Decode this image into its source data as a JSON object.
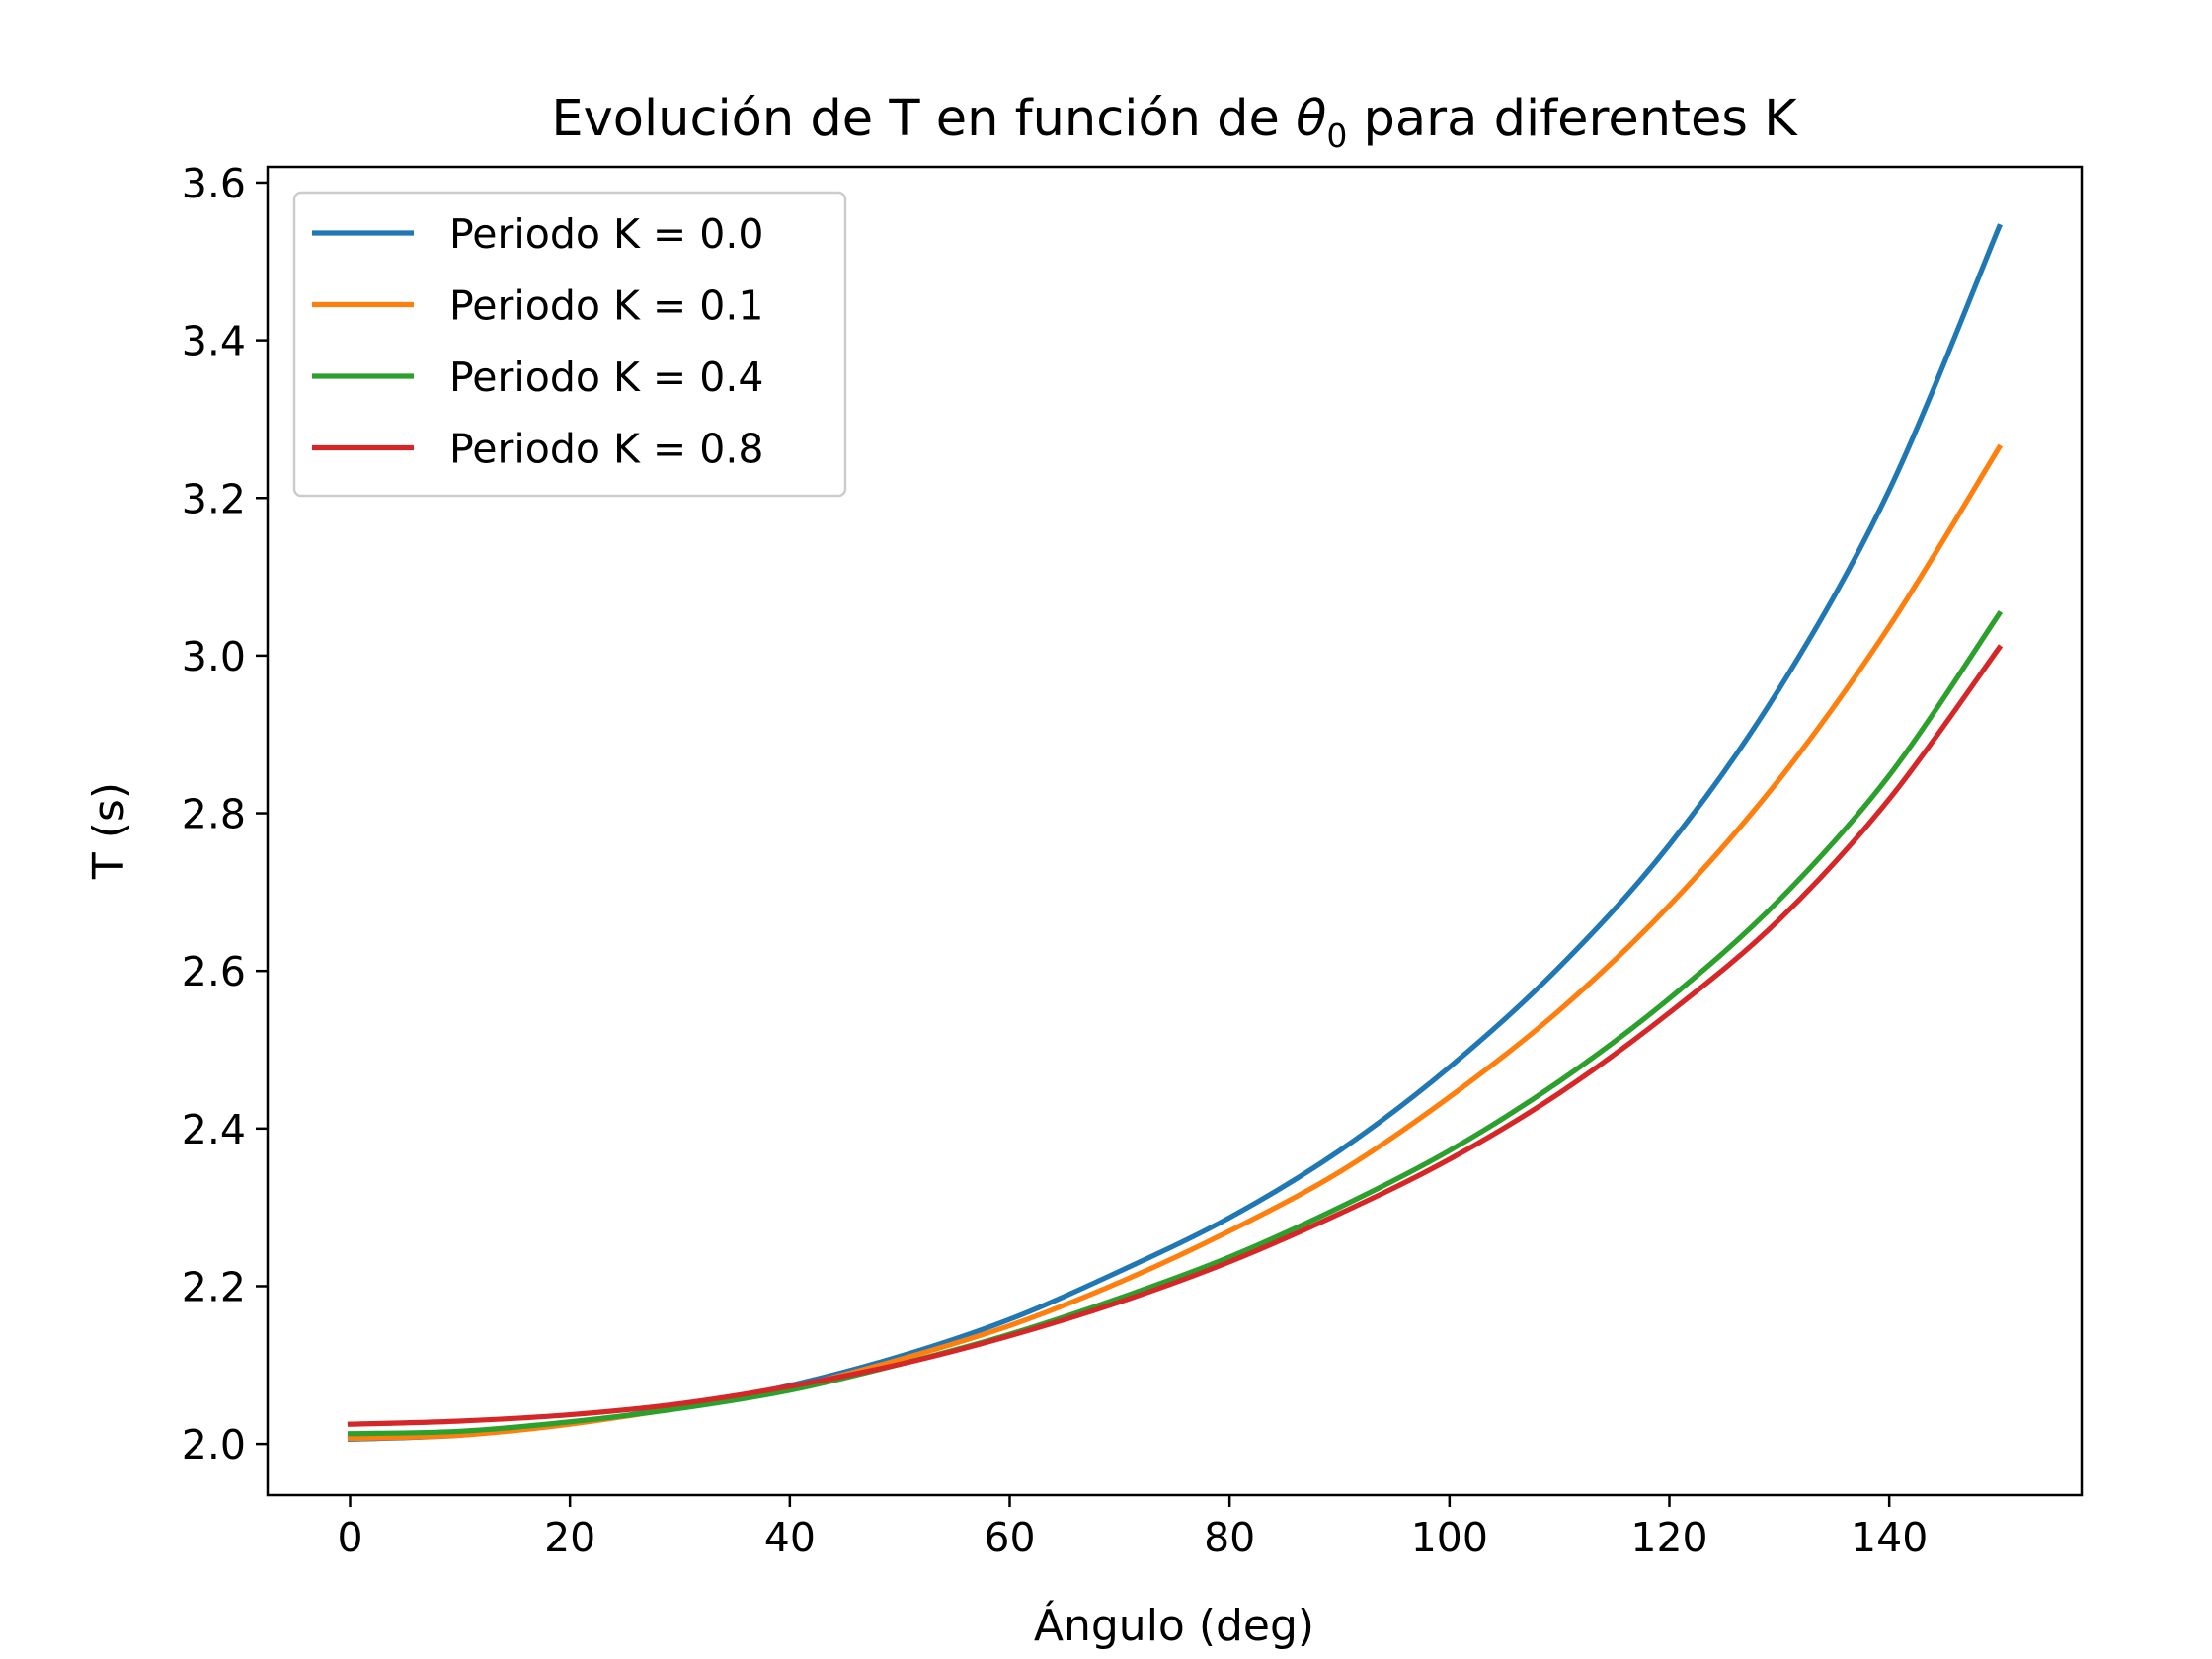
{
  "chart_data": {
    "type": "line",
    "title": {
      "prefix": "Evolución de T en función de ",
      "symbol": "θ",
      "subscript": "0",
      "suffix": " para diferentes K"
    },
    "xlabel": "Ángulo (deg)",
    "ylabel": "T (s)",
    "xlim": [
      -7.5,
      157.5
    ],
    "ylim": [
      1.935,
      3.62
    ],
    "xticks": [
      0,
      20,
      40,
      60,
      80,
      100,
      120,
      140
    ],
    "yticks": [
      2.0,
      2.2,
      2.4,
      2.6,
      2.8,
      3.0,
      3.2,
      3.4,
      3.6
    ],
    "grid": false,
    "legend_position": "upper-left",
    "series": [
      {
        "name": "Periodo K = 0.0",
        "color": "#1f77b4",
        "x": [
          0,
          10,
          20,
          30,
          40,
          50,
          60,
          70,
          80,
          90,
          100,
          110,
          120,
          130,
          140,
          150
        ],
        "y": [
          2.006,
          2.011,
          2.026,
          2.047,
          2.074,
          2.111,
          2.158,
          2.219,
          2.287,
          2.372,
          2.478,
          2.605,
          2.76,
          2.958,
          3.21,
          3.544
        ]
      },
      {
        "name": "Periodo K = 0.1",
        "color": "#ff7f0e",
        "x": [
          0,
          10,
          20,
          30,
          40,
          50,
          60,
          70,
          80,
          90,
          100,
          110,
          120,
          130,
          140,
          150
        ],
        "y": [
          2.007,
          2.011,
          2.025,
          2.046,
          2.071,
          2.107,
          2.15,
          2.205,
          2.27,
          2.345,
          2.44,
          2.55,
          2.683,
          2.843,
          3.037,
          3.264
        ]
      },
      {
        "name": "Periodo K = 0.4",
        "color": "#2ca02c",
        "x": [
          0,
          10,
          20,
          30,
          40,
          50,
          60,
          70,
          80,
          90,
          100,
          110,
          120,
          130,
          140,
          150
        ],
        "y": [
          2.013,
          2.016,
          2.028,
          2.045,
          2.068,
          2.101,
          2.139,
          2.185,
          2.237,
          2.3,
          2.372,
          2.46,
          2.565,
          2.69,
          2.848,
          3.053
        ]
      },
      {
        "name": "Periodo K = 0.8",
        "color": "#d62728",
        "x": [
          0,
          10,
          20,
          30,
          40,
          50,
          60,
          70,
          80,
          90,
          100,
          110,
          120,
          130,
          140,
          150
        ],
        "y": [
          2.025,
          2.029,
          2.037,
          2.051,
          2.073,
          2.101,
          2.137,
          2.18,
          2.231,
          2.292,
          2.361,
          2.445,
          2.547,
          2.665,
          2.818,
          3.01
        ]
      }
    ]
  }
}
